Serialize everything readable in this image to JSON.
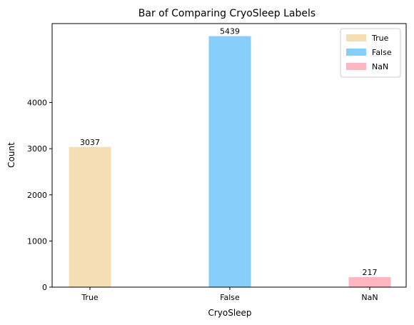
{
  "chart_data": {
    "type": "bar",
    "title": "Bar of Comparing CryoSleep Labels",
    "xlabel": "CryoSleep",
    "ylabel": "Count",
    "categories": [
      "True",
      "False",
      "NaN"
    ],
    "values": [
      3037,
      5439,
      217
    ],
    "colors": [
      "#f5deb3",
      "#87cefa",
      "#ffb6c1"
    ],
    "ylim": [
      0,
      5711
    ],
    "yticks": [
      0,
      1000,
      2000,
      3000,
      4000
    ],
    "legend": {
      "position": "top-right",
      "entries": [
        "True",
        "False",
        "NaN"
      ]
    },
    "grid": false
  }
}
